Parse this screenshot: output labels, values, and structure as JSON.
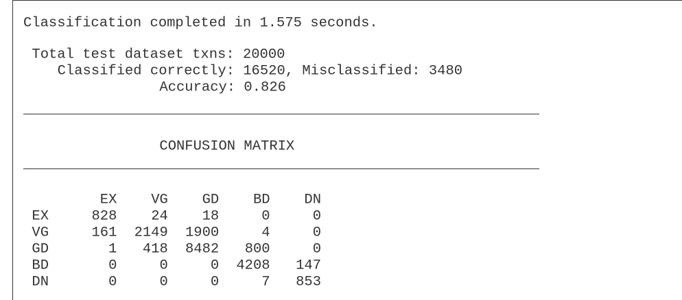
{
  "status": "Classification completed in 1.575 seconds.",
  "summary": [
    "Total test dataset txns: 20000",
    "Classified correctly: 16520, Misclassified: 3480",
    "Accuracy: 0.826"
  ],
  "matrix": {
    "title": "CONFUSION MATRIX",
    "columns": [
      "EX",
      "VG",
      "GD",
      "BD",
      "DN"
    ],
    "rows": [
      {
        "label": "EX",
        "values": [
          828,
          24,
          18,
          0,
          0
        ]
      },
      {
        "label": "VG",
        "values": [
          161,
          2149,
          1900,
          4,
          0
        ]
      },
      {
        "label": "GD",
        "values": [
          1,
          418,
          8482,
          800,
          0
        ]
      },
      {
        "label": "BD",
        "values": [
          0,
          0,
          0,
          4208,
          147
        ]
      },
      {
        "label": "DN",
        "values": [
          0,
          0,
          0,
          7,
          853
        ]
      }
    ]
  }
}
